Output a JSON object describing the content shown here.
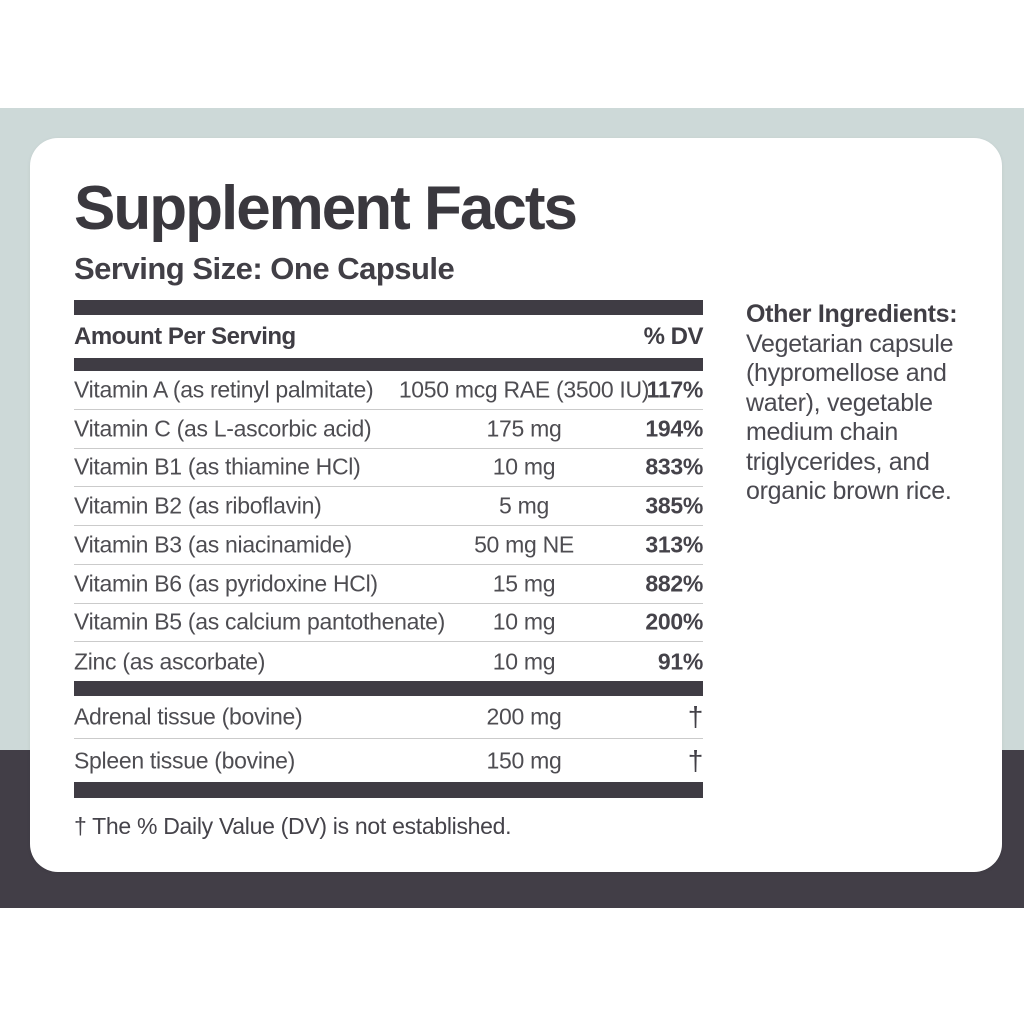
{
  "label": {
    "title": "Supplement Facts",
    "serving_size": "Serving Size: One Capsule",
    "table": {
      "header": {
        "amount_col": "Amount Per Serving",
        "dv_col": "% DV"
      },
      "rows": [
        {
          "name": "Vitamin A (as retinyl palmitate)",
          "amount": "1050 mcg RAE (3500 IU)",
          "dv": "117%"
        },
        {
          "name": "Vitamin C (as L-ascorbic acid)",
          "amount": "175 mg",
          "dv": "194%"
        },
        {
          "name": "Vitamin B1 (as thiamine HCl)",
          "amount": "10 mg",
          "dv": "833%"
        },
        {
          "name": "Vitamin B2 (as riboflavin)",
          "amount": "5 mg",
          "dv": "385%"
        },
        {
          "name": "Vitamin B3 (as niacinamide)",
          "amount": "50 mg NE",
          "dv": "313%"
        },
        {
          "name": "Vitamin B6 (as pyridoxine HCl)",
          "amount": "15 mg",
          "dv": "882%"
        },
        {
          "name": "Vitamin B5 (as calcium pantothenate)",
          "amount": "10 mg",
          "dv": "200%"
        },
        {
          "name": "Zinc (as ascorbate)",
          "amount": "10 mg",
          "dv": "91%"
        }
      ],
      "glandular_rows": [
        {
          "name": "Adrenal tissue (bovine)",
          "amount": "200 mg",
          "dv": "†"
        },
        {
          "name": "Spleen tissue (bovine)",
          "amount": "150 mg",
          "dv": "†"
        }
      ],
      "footnote": "† The % Daily Value (DV) is not established."
    }
  },
  "other_ingredients": {
    "heading": "Other Ingredients:",
    "lines": [
      "Vegetarian capsule",
      "(hypromellose and",
      "water), vegetable",
      "medium chain",
      "triglycerides, and",
      "organic brown rice."
    ]
  },
  "colors": {
    "band_light": "#cdd9d8",
    "band_dark": "#423e47",
    "divider_bar": "#3f3c44",
    "title_text": "#3a383e",
    "body_text": "#4e4d52",
    "separator": "#cbcbcb"
  }
}
